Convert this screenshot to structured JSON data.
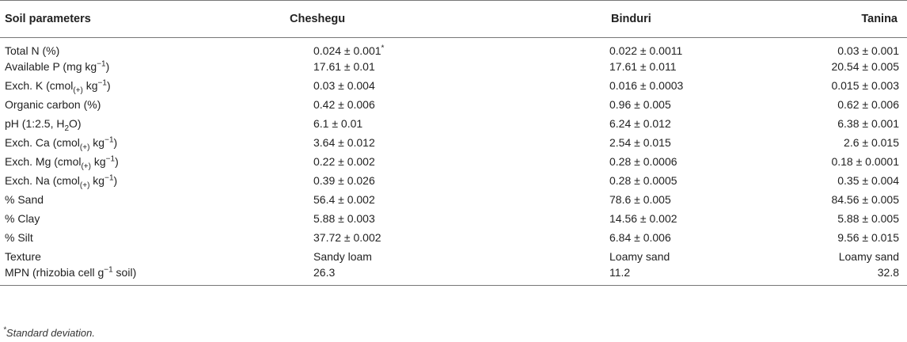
{
  "header": {
    "col0": "Soil parameters",
    "col1": "Cheshegu",
    "col2": "Binduri",
    "col3": "Tanina"
  },
  "rows": [
    {
      "p": "Total N (%)",
      "v1": "0.024 ± 0.001",
      "v1_sup": "*",
      "v2": "0.022 ± 0.0011",
      "v3": "0.03 ± 0.001"
    },
    {
      "p_pre": "Available P (mg kg",
      "p_sup": "−1",
      "p_post": ")",
      "v1": "17.61 ± 0.01",
      "v2": "17.61 ± 0.011",
      "v3": "20.54 ± 0.005"
    },
    {
      "p_pre": "Exch. K (cmol",
      "p_sub": "(+)",
      "p_mid": " kg",
      "p_sup": "−1",
      "p_post": ")",
      "v1": "0.03 ± 0.004",
      "v2": "0.016 ± 0.0003",
      "v3": "0.015 ± 0.003"
    },
    {
      "p": "Organic carbon (%)",
      "v1": "0.42 ± 0.006",
      "v2": "0.96 ± 0.005",
      "v3": "0.62 ± 0.006"
    },
    {
      "p_pre": "pH (1:2.5, H",
      "p_sub": "2",
      "p_post": "O)",
      "v1": "6.1 ± 0.01",
      "v2": "6.24 ± 0.012",
      "v3": "6.38 ± 0.001"
    },
    {
      "p_pre": "Exch. Ca (cmol",
      "p_sub": "(+)",
      "p_mid": " kg",
      "p_sup": "−1",
      "p_post": ")",
      "v1": "3.64 ± 0.012",
      "v2": "2.54 ± 0.015",
      "v3": "2.6 ± 0.015"
    },
    {
      "p_pre": "Exch. Mg (cmol",
      "p_sub": "(+)",
      "p_mid": " kg",
      "p_sup": "−1",
      "p_post": ")",
      "v1": "0.22 ± 0.002",
      "v2": "0.28 ± 0.0006",
      "v3": "0.18 ± 0.0001"
    },
    {
      "p_pre": "Exch. Na (cmol",
      "p_sub": "(+)",
      "p_mid": " kg",
      "p_sup": "−1",
      "p_post": ")",
      "v1": "0.39 ± 0.026",
      "v2": "0.28 ± 0.0005",
      "v3": "0.35 ± 0.004"
    },
    {
      "p": "% Sand",
      "v1": "56.4 ± 0.002",
      "v2": "78.6 ± 0.005",
      "v3": "84.56 ± 0.005"
    },
    {
      "p": "% Clay",
      "v1": "5.88 ± 0.003",
      "v2": "14.56 ± 0.002",
      "v3": "5.88 ± 0.005"
    },
    {
      "p": "% Silt",
      "v1": "37.72 ± 0.002",
      "v2": "6.84 ± 0.006",
      "v3": "9.56 ± 0.015"
    },
    {
      "p": "Texture",
      "v1": "Sandy loam",
      "v2": "Loamy sand",
      "v3": "Loamy sand"
    },
    {
      "p_pre": "MPN (rhizobia cell g",
      "p_sup": "−1",
      "p_post": " soil)",
      "v1": "26.3",
      "v2": "11.2",
      "v3": "32.8"
    }
  ],
  "footnote": {
    "mark": "*",
    "text": "Standard deviation."
  }
}
